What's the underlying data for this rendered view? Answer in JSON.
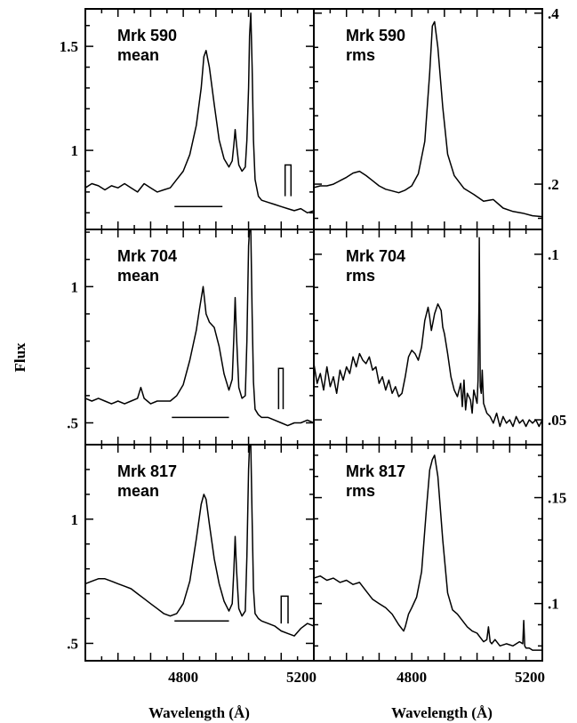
{
  "figure": {
    "y_axis_title": "Flux",
    "x_axis_title_left": "Wavelength (Å)",
    "x_axis_title_right": "Wavelength (Å)"
  },
  "chart_data": [
    {
      "type": "line",
      "panel": "Mrk 590 mean",
      "name_line1": "Mrk 590",
      "name_line2": "mean",
      "xlim": [
        4500,
        5200
      ],
      "ylim": [
        0.62,
        1.68
      ],
      "yticks": [
        1,
        1.5
      ],
      "ytick_labels": [
        "1",
        "1.5"
      ],
      "y_axis_side": "left",
      "xticks": [
        4800,
        5200
      ],
      "xtick_labels": [],
      "series": [
        {
          "x": [
            4500,
            4520,
            4540,
            4560,
            4580,
            4600,
            4620,
            4640,
            4660,
            4680,
            4700,
            4720,
            4740,
            4760,
            4780,
            4800,
            4820,
            4840,
            4855,
            4863,
            4870,
            4880,
            4895,
            4910,
            4925,
            4940,
            4950,
            4955,
            4959,
            4963,
            4970,
            4980,
            4990,
            4995,
            5000,
            5003,
            5007,
            5011,
            5015,
            5020,
            5030,
            5040,
            5060,
            5080,
            5100,
            5120,
            5140,
            5160,
            5180,
            5200
          ],
          "y": [
            0.82,
            0.84,
            0.83,
            0.81,
            0.83,
            0.82,
            0.84,
            0.82,
            0.8,
            0.84,
            0.82,
            0.8,
            0.81,
            0.82,
            0.86,
            0.9,
            0.98,
            1.12,
            1.3,
            1.45,
            1.48,
            1.4,
            1.22,
            1.05,
            0.96,
            0.92,
            0.95,
            1.03,
            1.1,
            1.03,
            0.93,
            0.9,
            0.92,
            1.05,
            1.3,
            1.55,
            1.66,
            1.4,
            1.05,
            0.86,
            0.78,
            0.76,
            0.75,
            0.74,
            0.73,
            0.72,
            0.71,
            0.72,
            0.7,
            0.71
          ]
        }
      ],
      "annotations": [
        {
          "shape": "hline",
          "x": [
            4773,
            4920
          ],
          "y": 0.73
        },
        {
          "shape": "box",
          "x": [
            5112,
            5130
          ],
          "y": [
            0.78,
            0.93
          ]
        }
      ]
    },
    {
      "type": "line",
      "panel": "Mrk 590 rms",
      "name_line1": "Mrk 590",
      "name_line2": "rms",
      "xlim": [
        4500,
        5200
      ],
      "ylim": [
        0.147,
        0.405
      ],
      "yticks": [
        0.2,
        0.4
      ],
      "ytick_labels": [
        ".2",
        ".4"
      ],
      "y_axis_side": "right",
      "xticks": [
        4800,
        5200
      ],
      "xtick_labels": [],
      "series": [
        {
          "x": [
            4500,
            4520,
            4540,
            4560,
            4580,
            4600,
            4620,
            4640,
            4660,
            4680,
            4700,
            4720,
            4740,
            4760,
            4780,
            4800,
            4820,
            4840,
            4855,
            4863,
            4870,
            4880,
            4895,
            4910,
            4930,
            4960,
            4990,
            5020,
            5050,
            5080,
            5110,
            5140,
            5170,
            5200
          ],
          "y": [
            0.196,
            0.198,
            0.198,
            0.2,
            0.204,
            0.208,
            0.213,
            0.215,
            0.21,
            0.204,
            0.198,
            0.194,
            0.192,
            0.19,
            0.193,
            0.198,
            0.212,
            0.25,
            0.33,
            0.385,
            0.39,
            0.36,
            0.29,
            0.235,
            0.21,
            0.195,
            0.188,
            0.18,
            0.182,
            0.172,
            0.168,
            0.166,
            0.163,
            0.162
          ]
        }
      ]
    },
    {
      "type": "line",
      "panel": "Mrk 704 mean",
      "name_line1": "Mrk 704",
      "name_line2": "mean",
      "xlim": [
        4500,
        5200
      ],
      "ylim": [
        0.42,
        1.21
      ],
      "yticks": [
        0.5,
        1
      ],
      "ytick_labels": [
        ".5",
        "1"
      ],
      "y_axis_side": "left",
      "xticks": [
        4800,
        5200
      ],
      "xtick_labels": [],
      "series": [
        {
          "x": [
            4500,
            4520,
            4540,
            4560,
            4580,
            4600,
            4620,
            4640,
            4660,
            4670,
            4680,
            4690,
            4700,
            4720,
            4740,
            4760,
            4780,
            4800,
            4820,
            4840,
            4850,
            4861,
            4870,
            4880,
            4895,
            4910,
            4925,
            4940,
            4950,
            4955,
            4959,
            4963,
            4970,
            4980,
            4990,
            4995,
            5000,
            5003,
            5007,
            5011,
            5015,
            5020,
            5030,
            5040,
            5060,
            5080,
            5100,
            5120,
            5140,
            5160,
            5180,
            5200
          ],
          "y": [
            0.59,
            0.58,
            0.59,
            0.58,
            0.57,
            0.58,
            0.57,
            0.58,
            0.59,
            0.63,
            0.59,
            0.58,
            0.57,
            0.58,
            0.58,
            0.58,
            0.6,
            0.64,
            0.73,
            0.84,
            0.92,
            1.0,
            0.9,
            0.87,
            0.85,
            0.78,
            0.68,
            0.62,
            0.66,
            0.82,
            0.96,
            0.82,
            0.63,
            0.59,
            0.6,
            0.8,
            1.15,
            1.21,
            1.21,
            0.9,
            0.65,
            0.55,
            0.53,
            0.52,
            0.52,
            0.51,
            0.5,
            0.49,
            0.5,
            0.5,
            0.51,
            0.5
          ]
        }
      ],
      "annotations": [
        {
          "shape": "hline",
          "x": [
            4765,
            4940
          ],
          "y": 0.52
        },
        {
          "shape": "box",
          "x": [
            5092,
            5106
          ],
          "y": [
            0.55,
            0.7
          ]
        }
      ]
    },
    {
      "type": "line",
      "panel": "Mrk 704 rms",
      "name_line1": "Mrk 704",
      "name_line2": "rms",
      "xlim": [
        4500,
        5200
      ],
      "ylim": [
        0.0425,
        0.1075
      ],
      "yticks": [
        0.05,
        0.1
      ],
      "ytick_labels": [
        ".05",
        ".1"
      ],
      "y_axis_side": "right",
      "xticks": [
        4800,
        5200
      ],
      "xtick_labels": [],
      "series": [
        {
          "x": [
            4500,
            4510,
            4520,
            4530,
            4540,
            4550,
            4560,
            4570,
            4580,
            4590,
            4600,
            4610,
            4620,
            4630,
            4640,
            4650,
            4660,
            4670,
            4680,
            4690,
            4700,
            4710,
            4720,
            4730,
            4740,
            4750,
            4760,
            4770,
            4780,
            4790,
            4800,
            4810,
            4820,
            4830,
            4840,
            4850,
            4855,
            4860,
            4866,
            4870,
            4880,
            4890,
            4895,
            4900,
            4910,
            4920,
            4930,
            4940,
            4950,
            4955,
            4960,
            4965,
            4970,
            4980,
            4985,
            4990,
            5000,
            5003,
            5006,
            5007,
            5008,
            5010,
            5013,
            5016,
            5020,
            5030,
            5040,
            5050,
            5060,
            5070,
            5080,
            5090,
            5100,
            5110,
            5120,
            5130,
            5140,
            5150,
            5160,
            5170,
            5180,
            5190,
            5200
          ],
          "y": [
            0.067,
            0.061,
            0.064,
            0.059,
            0.066,
            0.06,
            0.063,
            0.058,
            0.065,
            0.062,
            0.066,
            0.064,
            0.069,
            0.066,
            0.07,
            0.068,
            0.067,
            0.069,
            0.065,
            0.066,
            0.061,
            0.063,
            0.059,
            0.062,
            0.058,
            0.06,
            0.057,
            0.058,
            0.063,
            0.069,
            0.071,
            0.07,
            0.068,
            0.072,
            0.08,
            0.084,
            0.081,
            0.077,
            0.08,
            0.082,
            0.085,
            0.083,
            0.078,
            0.076,
            0.07,
            0.063,
            0.059,
            0.057,
            0.061,
            0.054,
            0.062,
            0.053,
            0.058,
            0.056,
            0.052,
            0.059,
            0.055,
            0.062,
            0.086,
            0.105,
            0.086,
            0.06,
            0.058,
            0.065,
            0.055,
            0.052,
            0.051,
            0.049,
            0.052,
            0.048,
            0.051,
            0.049,
            0.05,
            0.048,
            0.051,
            0.049,
            0.05,
            0.048,
            0.05,
            0.049,
            0.05,
            0.048,
            0.05
          ]
        }
      ]
    },
    {
      "type": "line",
      "panel": "Mrk 817 mean",
      "name_line1": "Mrk 817",
      "name_line2": "mean",
      "xlim": [
        4500,
        5200
      ],
      "ylim": [
        0.43,
        1.3
      ],
      "yticks": [
        0.5,
        1
      ],
      "ytick_labels": [
        ".5",
        "1"
      ],
      "y_axis_side": "left",
      "xticks": [
        4800,
        5200
      ],
      "xtick_labels": [
        "4800",
        "5200"
      ],
      "series": [
        {
          "x": [
            4500,
            4520,
            4540,
            4560,
            4580,
            4600,
            4620,
            4640,
            4660,
            4680,
            4700,
            4720,
            4740,
            4760,
            4780,
            4800,
            4820,
            4840,
            4855,
            4863,
            4870,
            4880,
            4895,
            4910,
            4925,
            4940,
            4950,
            4955,
            4959,
            4963,
            4970,
            4980,
            4990,
            4995,
            5000,
            5003,
            5007,
            5011,
            5015,
            5020,
            5030,
            5040,
            5060,
            5080,
            5100,
            5120,
            5140,
            5160,
            5180,
            5200
          ],
          "y": [
            0.74,
            0.75,
            0.76,
            0.76,
            0.75,
            0.74,
            0.73,
            0.72,
            0.7,
            0.68,
            0.66,
            0.64,
            0.62,
            0.61,
            0.62,
            0.66,
            0.75,
            0.92,
            1.06,
            1.1,
            1.08,
            0.98,
            0.84,
            0.74,
            0.67,
            0.63,
            0.66,
            0.8,
            0.93,
            0.8,
            0.64,
            0.61,
            0.63,
            0.85,
            1.2,
            1.3,
            1.3,
            1.0,
            0.72,
            0.62,
            0.6,
            0.59,
            0.58,
            0.57,
            0.55,
            0.54,
            0.53,
            0.56,
            0.58,
            0.57
          ]
        }
      ],
      "annotations": [
        {
          "shape": "hline",
          "x": [
            4773,
            4940
          ],
          "y": 0.59
        },
        {
          "shape": "box",
          "x": [
            5100,
            5121
          ],
          "y": [
            0.58,
            0.69
          ]
        }
      ]
    },
    {
      "type": "line",
      "panel": "Mrk 817 rms",
      "name_line1": "Mrk 817",
      "name_line2": "rms",
      "xlim": [
        4500,
        5200
      ],
      "ylim": [
        0.073,
        0.175
      ],
      "yticks": [
        0.1,
        0.15
      ],
      "ytick_labels": [
        ".1",
        ".15"
      ],
      "y_axis_side": "right",
      "xticks": [
        4800,
        5200
      ],
      "xtick_labels": [
        "4800",
        "5200"
      ],
      "series": [
        {
          "x": [
            4500,
            4520,
            4540,
            4560,
            4580,
            4600,
            4620,
            4640,
            4660,
            4680,
            4700,
            4720,
            4740,
            4760,
            4775,
            4780,
            4790,
            4800,
            4815,
            4830,
            4845,
            4855,
            4863,
            4870,
            4880,
            4895,
            4910,
            4925,
            4940,
            4955,
            4970,
            4985,
            5000,
            5010,
            5020,
            5030,
            5035,
            5040,
            5045,
            5055,
            5070,
            5090,
            5110,
            5130,
            5140,
            5143,
            5146,
            5150,
            5160,
            5170,
            5180,
            5200
          ],
          "y": [
            0.112,
            0.113,
            0.111,
            0.112,
            0.11,
            0.111,
            0.109,
            0.11,
            0.106,
            0.102,
            0.1,
            0.098,
            0.095,
            0.09,
            0.087,
            0.089,
            0.095,
            0.098,
            0.103,
            0.115,
            0.145,
            0.163,
            0.168,
            0.17,
            0.16,
            0.13,
            0.105,
            0.097,
            0.095,
            0.092,
            0.089,
            0.087,
            0.086,
            0.084,
            0.082,
            0.083,
            0.089,
            0.082,
            0.081,
            0.083,
            0.08,
            0.081,
            0.08,
            0.082,
            0.081,
            0.092,
            0.08,
            0.079,
            0.079,
            0.078,
            0.078,
            0.078
          ]
        }
      ]
    }
  ]
}
